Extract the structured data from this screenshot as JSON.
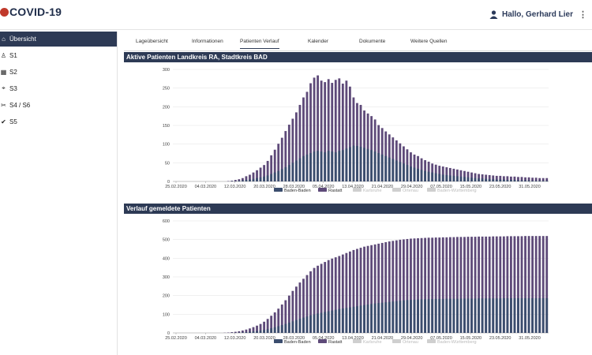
{
  "app": {
    "title": "COVID-19"
  },
  "header": {
    "greeting": "Hallo, Gerhard Lier",
    "menu_glyph": "⋮"
  },
  "sidebar": {
    "items": [
      {
        "label": "Übersicht",
        "icon": "home-icon",
        "glyph": "⌂",
        "active": true
      },
      {
        "label": "S1",
        "icon": "person-icon",
        "glyph": "♙"
      },
      {
        "label": "S2",
        "icon": "map-icon",
        "glyph": "▦"
      },
      {
        "label": "S3",
        "icon": "location-icon",
        "glyph": "⌖"
      },
      {
        "label": "S4 / S6",
        "icon": "tools-icon",
        "glyph": "✂"
      },
      {
        "label": "S5",
        "icon": "check-circle-icon",
        "glyph": "✔"
      }
    ]
  },
  "tabs": [
    {
      "label": "Lageübersicht"
    },
    {
      "label": "Informationen"
    },
    {
      "label": "Patienten Verlauf",
      "active": true
    },
    {
      "label": "Kalender"
    },
    {
      "label": "Dokumente"
    },
    {
      "label": "Weitere Quellen"
    }
  ],
  "colors": {
    "navy": "#2d3a55",
    "baden": "#3b4d6e",
    "rastatt": "#5e4a79",
    "inactive": "#cfcfcf"
  },
  "chart_data": [
    {
      "type": "bar",
      "title": "Aktive Patienten Landkreis RA, Stadtkreis BAD",
      "ylim": [
        0,
        300
      ],
      "yticks": [
        0,
        50,
        100,
        150,
        200,
        250,
        300
      ],
      "xtick_labels": [
        "25.02.2020",
        "04.03.2020",
        "12.03.2020",
        "20.03.2020",
        "28.03.2020",
        "05.04.2020",
        "13.04.2020",
        "21.04.2020",
        "29.04.2020",
        "07.05.2020",
        "15.05.2020",
        "23.05.2020",
        "31.05.2020"
      ],
      "legend": [
        "Baden-Baden",
        "Rastatt",
        "Karlsruhe",
        "Ortenau",
        "Baden-Württemberg"
      ],
      "legend_active": [
        true,
        true,
        false,
        false,
        false
      ],
      "series": [
        {
          "name": "Rastatt",
          "values": [
            0,
            0,
            0,
            0,
            0,
            0,
            0,
            0,
            0,
            0,
            0,
            0,
            0,
            0,
            0,
            1,
            2,
            4,
            6,
            9,
            14,
            18,
            24,
            30,
            37,
            44,
            55,
            70,
            85,
            101,
            117,
            135,
            152,
            168,
            185,
            205,
            225,
            240,
            263,
            278,
            284,
            270,
            266,
            274,
            264,
            272,
            276,
            262,
            270,
            254,
            225,
            210,
            205,
            190,
            182,
            175,
            166,
            151,
            143,
            134,
            126,
            118,
            110,
            102,
            94,
            86,
            78,
            72,
            68,
            62,
            57,
            53,
            48,
            45,
            42,
            40,
            38,
            36,
            34,
            32,
            30,
            28,
            26,
            24,
            22,
            20,
            19,
            18,
            17,
            16,
            15,
            15,
            14,
            14,
            13,
            13,
            12,
            12,
            11,
            11,
            10,
            10,
            9,
            9,
            9
          ]
        },
        {
          "name": "Baden-Baden",
          "values": [
            0,
            0,
            0,
            0,
            0,
            0,
            0,
            0,
            0,
            0,
            0,
            0,
            0,
            0,
            0,
            0,
            1,
            1,
            2,
            3,
            4,
            5,
            7,
            9,
            11,
            13,
            16,
            20,
            24,
            28,
            33,
            38,
            44,
            50,
            56,
            62,
            68,
            72,
            76,
            80,
            82,
            80,
            78,
            82,
            80,
            78,
            82,
            84,
            88,
            92,
            96,
            95,
            93,
            90,
            87,
            84,
            80,
            76,
            72,
            68,
            64,
            60,
            56,
            52,
            48,
            44,
            40,
            37,
            34,
            31,
            28,
            26,
            24,
            22,
            20,
            18,
            17,
            16,
            15,
            14,
            13,
            12,
            11,
            10,
            9,
            8,
            8,
            7,
            6,
            6,
            5,
            5,
            5,
            4,
            4,
            4,
            3,
            3,
            3,
            3,
            2,
            2,
            2,
            2,
            2
          ]
        }
      ]
    },
    {
      "type": "bar",
      "title": "Verlauf gemeldete Patienten",
      "ylim": [
        0,
        600
      ],
      "yticks": [
        0,
        100,
        200,
        300,
        400,
        500,
        600
      ],
      "xtick_labels": [
        "25.02.2020",
        "04.03.2020",
        "12.03.2020",
        "20.03.2020",
        "28.03.2020",
        "05.04.2020",
        "13.04.2020",
        "21.04.2020",
        "29.04.2020",
        "07.05.2020",
        "15.05.2020",
        "23.05.2020",
        "31.05.2020"
      ],
      "legend": [
        "Baden-Baden",
        "Rastatt",
        "Karlsruhe",
        "Ortenau",
        "Baden-Württemberg"
      ],
      "legend_active": [
        true,
        true,
        false,
        false,
        false
      ],
      "series": [
        {
          "name": "Rastatt",
          "values": [
            0,
            0,
            0,
            0,
            0,
            0,
            0,
            0,
            0,
            0,
            0,
            0,
            0,
            0,
            1,
            2,
            4,
            6,
            9,
            13,
            18,
            24,
            31,
            39,
            48,
            60,
            75,
            92,
            110,
            130,
            152,
            175,
            200,
            225,
            248,
            270,
            290,
            310,
            330,
            348,
            360,
            370,
            380,
            390,
            398,
            405,
            412,
            420,
            428,
            436,
            444,
            450,
            456,
            462,
            466,
            470,
            474,
            478,
            482,
            486,
            490,
            493,
            496,
            499,
            501,
            503,
            505,
            506,
            507,
            508,
            509,
            510,
            510,
            511,
            511,
            512,
            512,
            513,
            513,
            514,
            514,
            514,
            515,
            515,
            515,
            516,
            516,
            516,
            516,
            517,
            517,
            517,
            517,
            518,
            518,
            518,
            518,
            518,
            519,
            519,
            519,
            519,
            519,
            519,
            519
          ]
        },
        {
          "name": "Baden-Baden",
          "values": [
            0,
            0,
            0,
            0,
            0,
            0,
            0,
            0,
            0,
            0,
            0,
            0,
            0,
            0,
            0,
            0,
            1,
            1,
            2,
            3,
            4,
            6,
            8,
            10,
            13,
            16,
            20,
            25,
            30,
            36,
            42,
            48,
            55,
            62,
            69,
            76,
            82,
            88,
            94,
            99,
            104,
            108,
            112,
            116,
            120,
            124,
            128,
            131,
            134,
            137,
            140,
            143,
            146,
            149,
            152,
            155,
            158,
            160,
            162,
            164,
            166,
            168,
            170,
            172,
            174,
            176,
            177,
            178,
            179,
            180,
            180,
            181,
            181,
            182,
            182,
            182,
            183,
            183,
            183,
            183,
            184,
            184,
            184,
            184,
            184,
            185,
            185,
            185,
            185,
            185,
            185,
            185,
            186,
            186,
            186,
            186,
            186,
            186,
            186,
            186,
            186,
            186,
            186,
            186,
            186
          ]
        }
      ]
    }
  ]
}
